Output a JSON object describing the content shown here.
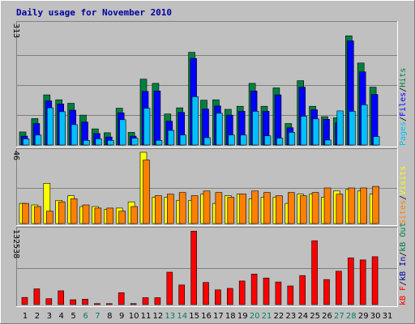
{
  "title": "Daily usage for November 2010",
  "colors": {
    "hits": "#008040",
    "files": "#0000ff",
    "pages": "#00c0ff",
    "visits": "#ffff00",
    "sites": "#ff8000",
    "kbin": "#ff0000",
    "kbout": "#ff0000",
    "weekday": "#000000",
    "weekend": "#00805c",
    "panel_bg": "#c0c0c0",
    "grid": "#808080",
    "title": "#0000a0"
  },
  "chart_data": [
    {
      "type": "bar",
      "ymax_label": "313",
      "ylim": [
        0,
        313
      ],
      "grid": true,
      "legend": [
        {
          "text": "Pages",
          "color": "#00c0ff"
        },
        {
          "text": "/",
          "color": "#000000"
        },
        {
          "text": "Files",
          "color": "#0000ff"
        },
        {
          "text": "/",
          "color": "#000000"
        },
        {
          "text": "Hits",
          "color": "#008040"
        }
      ],
      "series": [
        {
          "name": "Hits",
          "values": [
            34,
            69,
            131,
            118,
            109,
            78,
            42,
            32,
            96,
            33,
            172,
            161,
            81,
            97,
            242,
            117,
            118,
            93,
            101,
            161,
            101,
            149,
            56,
            168,
            101,
            74,
            71,
            285,
            214,
            151
          ]
        },
        {
          "name": "Files",
          "values": [
            23,
            56,
            115,
            107,
            91,
            60,
            30,
            21,
            84,
            23,
            140,
            141,
            62,
            85,
            226,
            94,
            102,
            78,
            88,
            141,
            88,
            131,
            45,
            151,
            92,
            67,
            58,
            272,
            191,
            132
          ]
        },
        {
          "name": "Pages",
          "values": [
            16,
            26,
            97,
            87,
            53,
            12,
            16,
            12,
            66,
            18,
            96,
            12,
            38,
            26,
            126,
            19,
            83,
            26,
            26,
            88,
            24,
            18,
            33,
            75,
            68,
            13,
            89,
            88,
            105,
            22
          ]
        }
      ]
    },
    {
      "type": "bar",
      "ymax_label": "46",
      "ylim": [
        0,
        46
      ],
      "grid": true,
      "legend": [
        {
          "text": "Sites",
          "color": "#ff8000"
        },
        {
          "text": "/",
          "color": "#000000"
        },
        {
          "text": "Visits",
          "color": "#ffff00"
        }
      ],
      "series": [
        {
          "name": "Visits",
          "values": [
            13,
            12,
            26,
            15,
            18,
            11,
            11,
            9,
            10,
            14,
            46,
            17,
            17,
            15,
            15,
            19,
            13,
            18,
            19,
            16,
            17,
            17,
            13,
            19,
            19,
            17,
            21,
            22,
            21,
            19
          ]
        },
        {
          "name": "Sites",
          "values": [
            13,
            11,
            8,
            14,
            16,
            12,
            10,
            10,
            8,
            11,
            41,
            18,
            19,
            20,
            18,
            21,
            20,
            17,
            19,
            21,
            20,
            18,
            20,
            18,
            20,
            23,
            19,
            23,
            23,
            24
          ]
        }
      ]
    },
    {
      "type": "bar",
      "ymax_label": "132538",
      "ylim": [
        0,
        132538
      ],
      "grid": true,
      "legend": [
        {
          "text": "kB F",
          "color": "#ff0000"
        },
        {
          "text": "/",
          "color": "#000000"
        },
        {
          "text": "kB In",
          "color": "#0000a0"
        },
        {
          "text": "/",
          "color": "#000000"
        },
        {
          "text": "kB Out",
          "color": "#008040"
        }
      ],
      "series": [
        {
          "name": "kB F",
          "values": [
            12800,
            28300,
            10600,
            24700,
            8800,
            9700,
            1800,
            1800,
            21200,
            1800,
            12400,
            12400,
            58300,
            35300,
            132000,
            39700,
            26500,
            29100,
            42400,
            54700,
            47700,
            40600,
            33500,
            52100,
            114700,
            45000,
            60000,
            84000,
            80300,
            86100
          ]
        }
      ]
    }
  ],
  "days": [
    {
      "label": "1",
      "weekend": false
    },
    {
      "label": "2",
      "weekend": false
    },
    {
      "label": "3",
      "weekend": false
    },
    {
      "label": "4",
      "weekend": false
    },
    {
      "label": "5",
      "weekend": false
    },
    {
      "label": "6",
      "weekend": true
    },
    {
      "label": "7",
      "weekend": true
    },
    {
      "label": "8",
      "weekend": false
    },
    {
      "label": "9",
      "weekend": false
    },
    {
      "label": "10",
      "weekend": false
    },
    {
      "label": "11",
      "weekend": false
    },
    {
      "label": "12",
      "weekend": false
    },
    {
      "label": "13",
      "weekend": true
    },
    {
      "label": "14",
      "weekend": true
    },
    {
      "label": "15",
      "weekend": false
    },
    {
      "label": "16",
      "weekend": false
    },
    {
      "label": "17",
      "weekend": false
    },
    {
      "label": "18",
      "weekend": false
    },
    {
      "label": "19",
      "weekend": false
    },
    {
      "label": "20",
      "weekend": true
    },
    {
      "label": "21",
      "weekend": true
    },
    {
      "label": "22",
      "weekend": false
    },
    {
      "label": "23",
      "weekend": false
    },
    {
      "label": "24",
      "weekend": false
    },
    {
      "label": "25",
      "weekend": false
    },
    {
      "label": "26",
      "weekend": false
    },
    {
      "label": "27",
      "weekend": true
    },
    {
      "label": "28",
      "weekend": true
    },
    {
      "label": "29",
      "weekend": false
    },
    {
      "label": "30",
      "weekend": false
    },
    {
      "label": "31",
      "weekend": false
    }
  ]
}
